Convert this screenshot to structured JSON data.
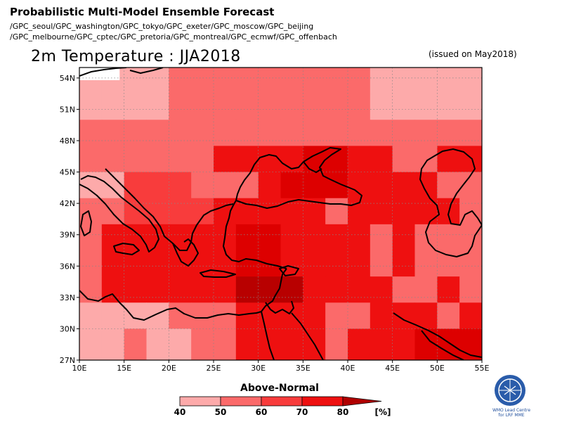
{
  "header": {
    "title": "Probabilistic Multi-Model Ensemble Forecast",
    "sources_line1": "/GPC_seoul/GPC_washington/GPC_tokyo/GPC_exeter/GPC_moscow/GPC_beijing",
    "sources_line2": "/GPC_melbourne/GPC_cptec/GPC_pretoria/GPC_montreal/GPC_ecmwf/GPC_offenbach"
  },
  "map": {
    "title": "2m Temperature : JJA2018",
    "issued": "(issued on May2018)",
    "lat_labels": [
      "54N",
      "51N",
      "48N",
      "45N",
      "42N",
      "39N",
      "36N",
      "33N",
      "30N",
      "27N"
    ],
    "lon_labels": [
      "10E",
      "15E",
      "20E",
      "25E",
      "30E",
      "35E",
      "40E",
      "45E",
      "50E",
      "55E"
    ],
    "lon_range": [
      10,
      55
    ],
    "lat_range": [
      27,
      55
    ],
    "grid_step_deg": 2.5
  },
  "legend": {
    "category": "Above-Normal",
    "ticks": [
      "40",
      "50",
      "60",
      "70",
      "80"
    ],
    "unit": "[%]",
    "colors": [
      "#fdaaaa",
      "#fb6a6a",
      "#f83c3c",
      "#ee1010",
      "#e80000",
      "#b00000"
    ]
  },
  "logo": {
    "text": "WMO Lead Centre for LRF MME"
  },
  "colors": {
    "c1": "#ffffff",
    "c2": "#fdaaaa",
    "c3": "#fb6a6a",
    "c4": "#f83c3c",
    "c5": "#ee1010",
    "c6": "#dd0000",
    "c7": "#b80000"
  }
}
